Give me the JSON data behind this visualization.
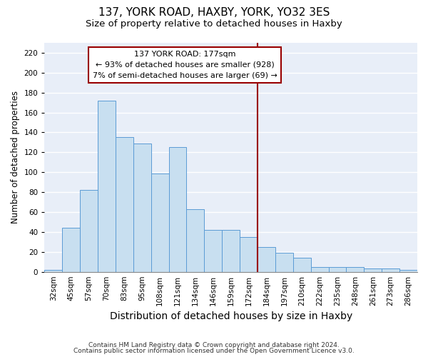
{
  "title": "137, YORK ROAD, HAXBY, YORK, YO32 3ES",
  "subtitle": "Size of property relative to detached houses in Haxby",
  "xlabel": "Distribution of detached houses by size in Haxby",
  "ylabel": "Number of detached properties",
  "bar_labels": [
    "32sqm",
    "45sqm",
    "57sqm",
    "70sqm",
    "83sqm",
    "95sqm",
    "108sqm",
    "121sqm",
    "134sqm",
    "146sqm",
    "159sqm",
    "172sqm",
    "184sqm",
    "197sqm",
    "210sqm",
    "222sqm",
    "235sqm",
    "248sqm",
    "261sqm",
    "273sqm",
    "286sqm"
  ],
  "bar_values": [
    2,
    44,
    82,
    172,
    135,
    129,
    99,
    125,
    63,
    42,
    42,
    35,
    25,
    19,
    14,
    5,
    5,
    5,
    3,
    3,
    2
  ],
  "bar_color": "#c8dff0",
  "bar_edge_color": "#5b9bd5",
  "fig_bg_color": "#ffffff",
  "plot_bg_color": "#e8eef8",
  "grid_color": "#ffffff",
  "vline_color": "#990000",
  "vline_x_index": 12,
  "annotation_title": "137 YORK ROAD: 177sqm",
  "annotation_line1": "← 93% of detached houses are smaller (928)",
  "annotation_line2": "7% of semi-detached houses are larger (69) →",
  "annotation_box_edge": "#990000",
  "ylim": [
    0,
    230
  ],
  "yticks": [
    0,
    20,
    40,
    60,
    80,
    100,
    120,
    140,
    160,
    180,
    200,
    220
  ],
  "footnote1": "Contains HM Land Registry data © Crown copyright and database right 2024.",
  "footnote2": "Contains public sector information licensed under the Open Government Licence v3.0.",
  "title_fontsize": 11,
  "subtitle_fontsize": 9.5,
  "xlabel_fontsize": 10,
  "ylabel_fontsize": 8.5,
  "tick_fontsize": 7.5,
  "annotation_fontsize": 8,
  "footnote_fontsize": 6.5
}
